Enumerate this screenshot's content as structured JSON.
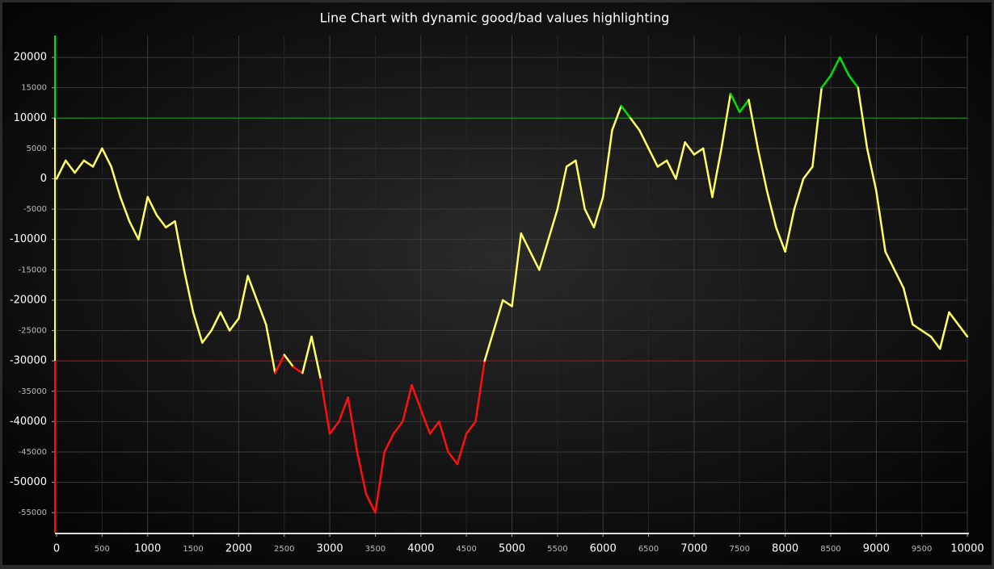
{
  "chart_data": {
    "type": "line",
    "title": "Line Chart with dynamic good/bad values highlighting",
    "x": [
      0,
      100,
      200,
      300,
      400,
      500,
      600,
      700,
      800,
      900,
      1000,
      1100,
      1200,
      1300,
      1400,
      1500,
      1600,
      1700,
      1800,
      1900,
      2000,
      2100,
      2200,
      2300,
      2400,
      2500,
      2600,
      2700,
      2800,
      2900,
      3000,
      3100,
      3200,
      3300,
      3400,
      3500,
      3600,
      3700,
      3800,
      3900,
      4000,
      4100,
      4200,
      4300,
      4400,
      4500,
      4600,
      4700,
      4800,
      4900,
      5000,
      5100,
      5200,
      5300,
      5400,
      5500,
      5600,
      5700,
      5800,
      5900,
      6000,
      6100,
      6200,
      6300,
      6400,
      6500,
      6600,
      6700,
      6800,
      6900,
      7000,
      7100,
      7200,
      7300,
      7400,
      7500,
      7600,
      7700,
      7800,
      7900,
      8000,
      8100,
      8200,
      8300,
      8400,
      8500,
      8600,
      8700,
      8800,
      8900,
      9000,
      9100,
      9200,
      9300,
      9400,
      9500,
      9600,
      9700,
      9800,
      9900,
      10000
    ],
    "values": [
      0,
      3000,
      1000,
      3000,
      2000,
      5000,
      2000,
      -3000,
      -7000,
      -10000,
      -3000,
      -6000,
      -8000,
      -7000,
      -15000,
      -22000,
      -27000,
      -25000,
      -22000,
      -25000,
      -23000,
      -16000,
      -20000,
      -24000,
      -32000,
      -29000,
      -31000,
      -32000,
      -26000,
      -33000,
      -42000,
      -40000,
      -36000,
      -45000,
      -52000,
      -55000,
      -45000,
      -42000,
      -40000,
      -34000,
      -38000,
      -42000,
      -40000,
      -45000,
      -47000,
      -42000,
      -40000,
      -30000,
      -25000,
      -20000,
      -21000,
      -9000,
      -12000,
      -15000,
      -10000,
      -5000,
      2000,
      3000,
      -5000,
      -8000,
      -3000,
      8000,
      12000,
      10000,
      8000,
      5000,
      2000,
      3000,
      0,
      6000,
      4000,
      5000,
      -3000,
      5000,
      14000,
      11000,
      13000,
      5000,
      -2000,
      -8000,
      -12000,
      -5000,
      0,
      2000,
      15000,
      17000,
      20000,
      17000,
      15000,
      5000,
      -2000,
      -12000,
      -15000,
      -18000,
      -24000,
      -25000,
      -26000,
      -28000,
      -22000,
      -24000,
      -26000
    ],
    "color": "#ffff60",
    "good_color": "#00e000",
    "bad_color": "#ff1010",
    "thresholds": {
      "good": 10000,
      "bad": -30000
    },
    "xlim": [
      0,
      10000
    ],
    "ylim": [
      -58300,
      23600
    ],
    "xticks": [
      0,
      500,
      1000,
      1500,
      2000,
      2500,
      3000,
      3500,
      4000,
      4500,
      5000,
      5500,
      6000,
      6500,
      7000,
      7500,
      8000,
      8500,
      9000,
      9500,
      10000
    ],
    "yticks": [
      20000,
      15000,
      10000,
      5000,
      0,
      -5000,
      -10000,
      -15000,
      -20000,
      -25000,
      -30000,
      -35000,
      -40000,
      -45000,
      -50000,
      -55000
    ],
    "grid": true
  }
}
